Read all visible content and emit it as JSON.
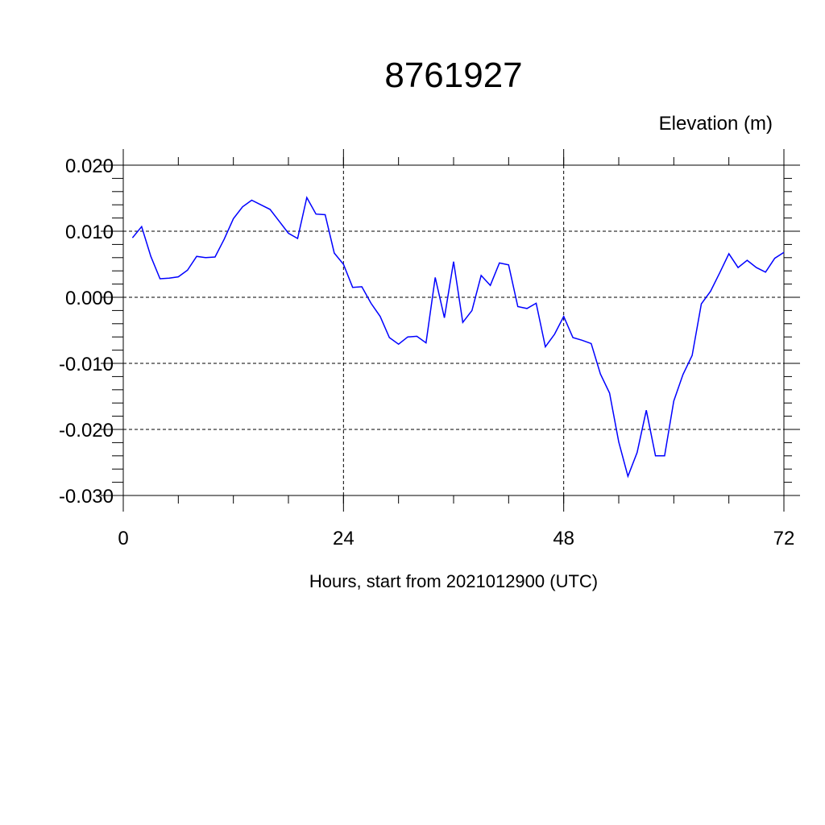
{
  "chart_data": {
    "type": "line",
    "title": "8761927",
    "ylabel": "Elevation (m)",
    "xlabel": "Hours, start from 2021012900 (UTC)",
    "xlim": [
      0,
      72
    ],
    "ylim": [
      -0.03,
      0.02
    ],
    "xticks": [
      0,
      24,
      48,
      72
    ],
    "xtick_labels": [
      "0",
      "24",
      "48",
      "72"
    ],
    "yticks": [
      -0.03,
      -0.02,
      -0.01,
      0.0,
      0.01,
      0.02
    ],
    "ytick_labels": [
      "-0.030",
      "-0.020",
      "-0.010",
      "0.000",
      "0.010",
      "0.020"
    ],
    "grid": true,
    "line_color": "#0000ff",
    "series": [
      {
        "x": [
          1,
          2,
          3,
          4,
          5,
          6,
          7,
          8,
          9,
          10,
          11,
          12,
          13,
          14,
          15,
          16,
          17,
          18,
          19,
          20,
          21,
          22,
          23,
          24,
          25,
          26,
          27,
          28,
          29,
          30,
          31,
          32,
          33,
          34,
          35,
          36,
          37,
          38,
          39,
          40,
          41,
          42,
          43,
          44,
          45,
          46,
          47,
          48,
          49,
          50,
          51,
          52,
          53,
          54,
          55,
          56,
          57,
          58,
          59,
          60,
          61,
          62,
          63,
          64,
          65,
          66,
          67,
          68,
          69,
          70,
          71,
          72
        ],
        "values": [
          0.009,
          0.0107,
          0.0062,
          0.0028,
          0.0029,
          0.0031,
          0.0041,
          0.0062,
          0.006,
          0.0061,
          0.0088,
          0.0119,
          0.0137,
          0.0147,
          0.014,
          0.0133,
          0.0115,
          0.0097,
          0.0089,
          0.0151,
          0.0126,
          0.0125,
          0.0067,
          0.005,
          0.0015,
          0.0016,
          -0.0009,
          -0.0029,
          -0.0061,
          -0.0071,
          -0.006,
          -0.0059,
          -0.0069,
          0.003,
          -0.0031,
          0.0054,
          -0.0038,
          -0.002,
          0.0033,
          0.0018,
          0.0052,
          0.0049,
          -0.0014,
          -0.0017,
          -0.0009,
          -0.0075,
          -0.0056,
          -0.0029,
          -0.0061,
          -0.0065,
          -0.007,
          -0.0116,
          -0.0145,
          -0.0219,
          -0.0271,
          -0.0235,
          -0.0171,
          -0.024,
          -0.024,
          -0.0157,
          -0.0117,
          -0.0088,
          -0.001,
          0.0009,
          0.0037,
          0.0066,
          0.0045,
          0.0056,
          0.0045,
          0.0038,
          0.0059,
          0.0068
        ]
      }
    ]
  }
}
